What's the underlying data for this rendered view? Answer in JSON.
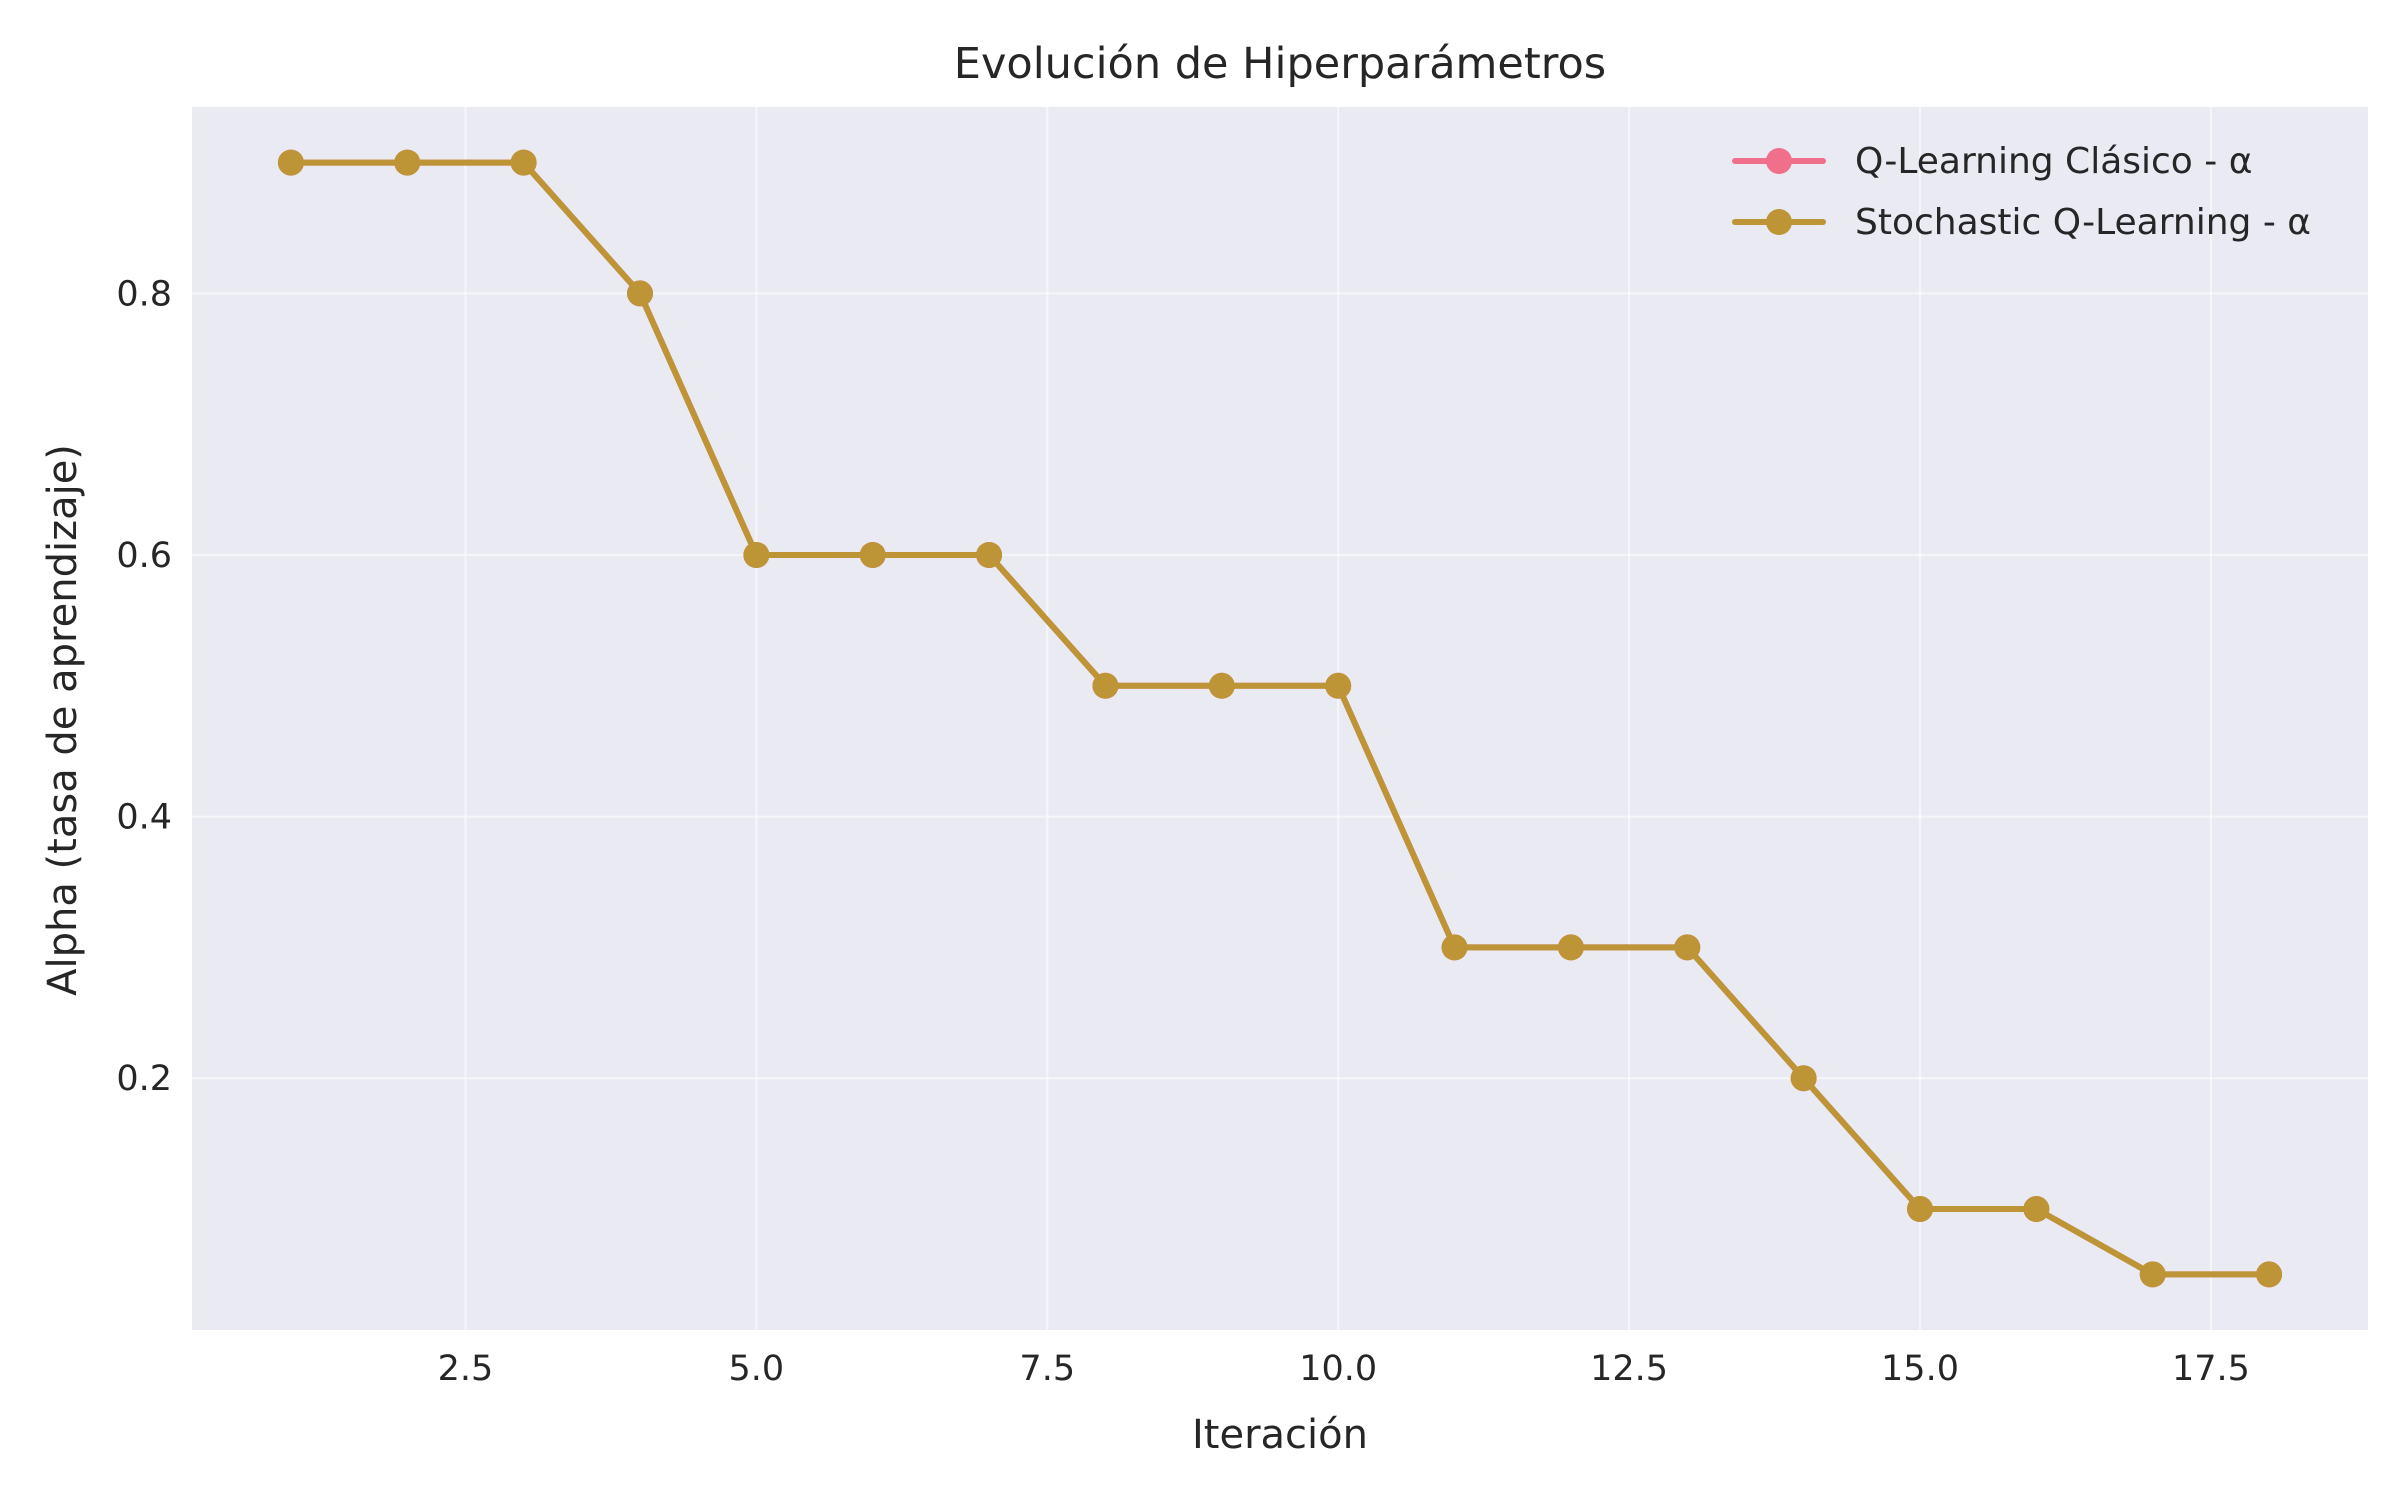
{
  "chart_data": {
    "type": "line",
    "title": "Evolución de Hiperparámetros",
    "xlabel": "Iteración",
    "ylabel": "Alpha (tasa de aprendizaje)",
    "xlim": [
      0.15,
      18.85
    ],
    "ylim": [
      0.0075,
      0.9425
    ],
    "xticks": [
      2.5,
      5.0,
      7.5,
      10.0,
      12.5,
      15.0,
      17.5
    ],
    "xtick_labels": [
      "2.5",
      "5.0",
      "7.5",
      "10.0",
      "12.5",
      "15.0",
      "17.5"
    ],
    "yticks": [
      0.2,
      0.4,
      0.6,
      0.8
    ],
    "ytick_labels": [
      "0.2",
      "0.4",
      "0.6",
      "0.8"
    ],
    "grid": true,
    "legend_position": "top-right",
    "x": [
      1,
      2,
      3,
      4,
      5,
      6,
      7,
      8,
      9,
      10,
      11,
      12,
      13,
      14,
      15,
      16,
      17,
      18
    ],
    "series": [
      {
        "name": "Q-Learning Clásico - α",
        "color": "#f0708c",
        "marker": "circle",
        "values": [
          0.9,
          0.9,
          0.9,
          0.8,
          0.6,
          0.6,
          0.6,
          0.5,
          0.5,
          0.5,
          0.3,
          0.3,
          0.3,
          0.2,
          0.1,
          0.1,
          0.05,
          0.05
        ]
      },
      {
        "name": "Stochastic Q-Learning - α",
        "color": "#bd9436",
        "marker": "circle",
        "values": [
          0.9,
          0.9,
          0.9,
          0.8,
          0.6,
          0.6,
          0.6,
          0.5,
          0.5,
          0.5,
          0.3,
          0.3,
          0.3,
          0.2,
          0.1,
          0.1,
          0.05,
          0.05
        ]
      }
    ],
    "colors": {
      "plot_background": "#eaeaf2",
      "grid": "#ffffff",
      "text": "#262626"
    }
  }
}
